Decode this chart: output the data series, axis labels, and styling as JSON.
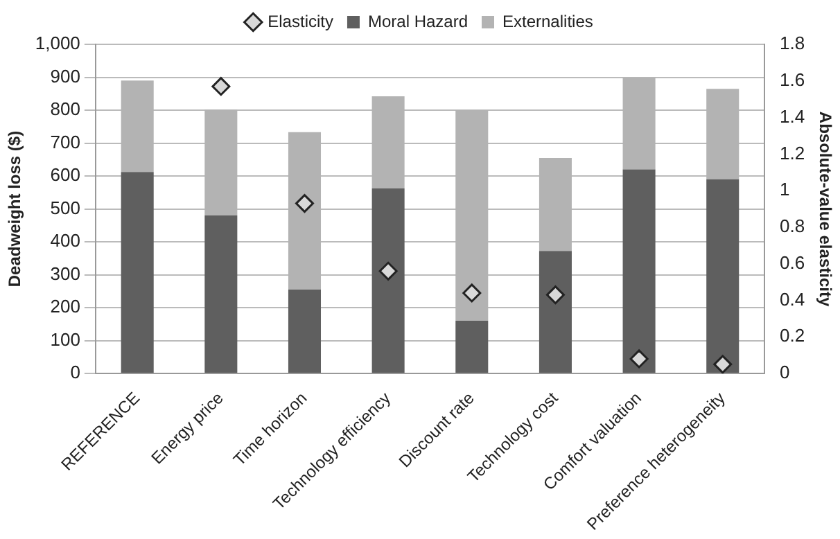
{
  "chart_data": {
    "type": "bar",
    "stacked": true,
    "categories": [
      "REFERENCE",
      "Energy price",
      "Time horizon",
      "Technology efficiency",
      "Discount rate",
      "Technology cost",
      "Comfort valuation",
      "Preference heterogeneity"
    ],
    "series": [
      {
        "name": "Moral Hazard",
        "color": "#5f5f5f",
        "values": [
          612,
          480,
          255,
          562,
          160,
          372,
          620,
          590
        ]
      },
      {
        "name": "Externalities",
        "color": "#b3b3b3",
        "values": [
          278,
          322,
          478,
          280,
          640,
          283,
          280,
          275
        ]
      },
      {
        "name": "Elasticity",
        "type": "scatter",
        "axis": "y2",
        "marker": "diamond",
        "color": "#d9d9d9",
        "values": [
          null,
          1.57,
          0.93,
          0.56,
          0.44,
          0.43,
          0.08,
          0.05
        ]
      }
    ],
    "ylabel": "Deadweight loss ($)",
    "y2label": "Absolute-value elasticity",
    "ylim": [
      0,
      1000
    ],
    "yticks": [
      0,
      {
        "value": 100,
        "label": "100"
      },
      200,
      300,
      400,
      500,
      600,
      700,
      800,
      900,
      {
        "value": 1000,
        "label": "1,000"
      }
    ],
    "y2lim": [
      0,
      1.8
    ],
    "y2ticks": [
      0,
      0.2,
      0.4,
      0.6,
      0.8,
      1,
      1.2,
      1.4,
      1.6,
      1.8
    ],
    "grid": "y",
    "legend": "top"
  }
}
